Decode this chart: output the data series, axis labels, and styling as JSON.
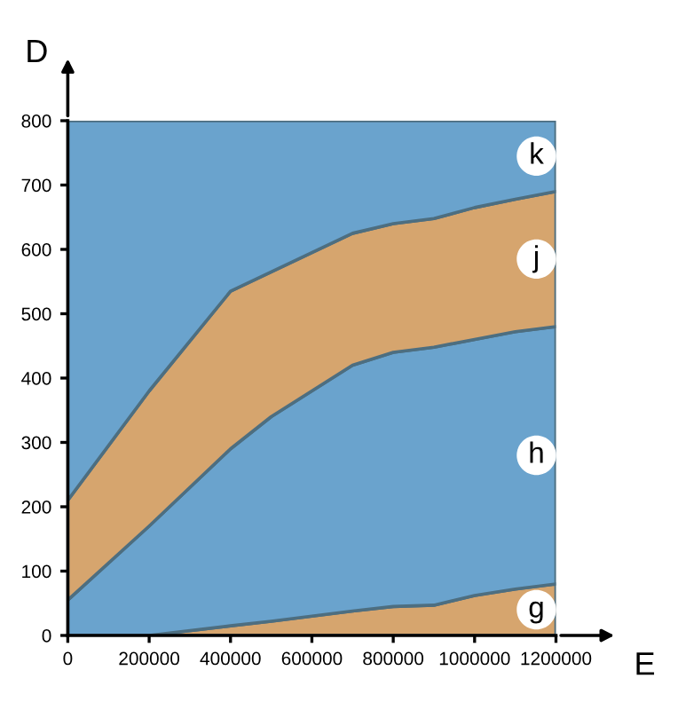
{
  "chart_data": {
    "type": "area",
    "stacked": true,
    "xlabel": "E",
    "ylabel": "D",
    "x": [
      0,
      200000,
      400000,
      500000,
      600000,
      700000,
      800000,
      900000,
      1000000,
      1100000,
      1200000
    ],
    "series": [
      {
        "name": "g",
        "color": "#d6a56e",
        "values": [
          0,
          0,
          15,
          22,
          30,
          38,
          45,
          47,
          62,
          72,
          80
        ]
      },
      {
        "name": "h",
        "color": "#6aa3cd",
        "values": [
          55,
          170,
          275,
          318,
          350,
          382,
          395,
          401,
          398,
          400,
          400
        ]
      },
      {
        "name": "j",
        "color": "#d6a56e",
        "values": [
          155,
          210,
          245,
          225,
          215,
          205,
          200,
          200,
          205,
          206,
          210
        ]
      },
      {
        "name": "k",
        "color": "#6aa3cd",
        "values": [
          590,
          420,
          265,
          235,
          205,
          175,
          160,
          152,
          135,
          122,
          110
        ]
      }
    ],
    "xlim": [
      0,
      1200000
    ],
    "ylim": [
      0,
      800
    ],
    "xticks": [
      0,
      200000,
      400000,
      600000,
      800000,
      1000000,
      1200000
    ],
    "yticks": [
      0,
      100,
      200,
      300,
      400,
      500,
      600,
      700,
      800
    ],
    "grid": false,
    "legend": false
  }
}
